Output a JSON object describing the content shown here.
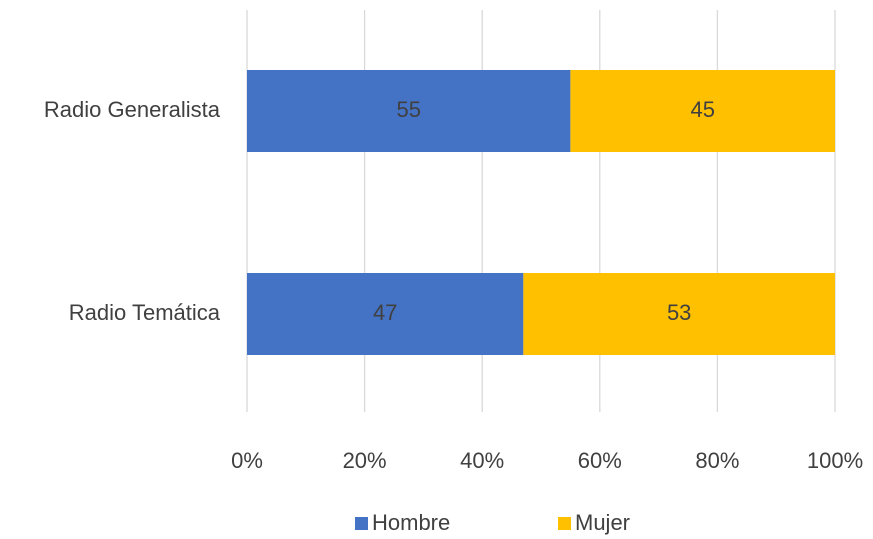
{
  "chart_data": {
    "type": "stacked_barh",
    "categories": [
      "Radio Generalista",
      "Radio Temática"
    ],
    "series": [
      {
        "name": "Hombre",
        "color": "#4472c4",
        "values": [
          55,
          47
        ]
      },
      {
        "name": "Mujer",
        "color": "#ffc000",
        "values": [
          45,
          53
        ]
      }
    ],
    "xlim": [
      0,
      100
    ],
    "xticks": [
      {
        "value": 0,
        "label": "0%"
      },
      {
        "value": 20,
        "label": "20%"
      },
      {
        "value": 40,
        "label": "40%"
      },
      {
        "value": 60,
        "label": "60%"
      },
      {
        "value": 80,
        "label": "80%"
      },
      {
        "value": 100,
        "label": "100%"
      }
    ],
    "grid": true,
    "legend": "bottom"
  }
}
